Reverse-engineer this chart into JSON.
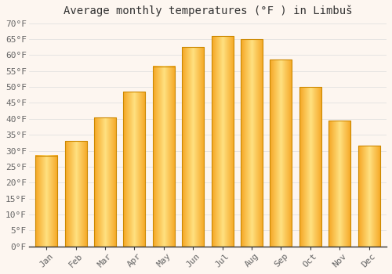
{
  "title": "Average monthly temperatures (°F ) in Limbuš",
  "months": [
    "Jan",
    "Feb",
    "Mar",
    "Apr",
    "May",
    "Jun",
    "Jul",
    "Aug",
    "Sep",
    "Oct",
    "Nov",
    "Dec"
  ],
  "values": [
    28.5,
    33.0,
    40.5,
    48.5,
    56.5,
    62.5,
    66.0,
    65.0,
    58.5,
    50.0,
    39.5,
    31.5
  ],
  "bar_color_center": "#FFD966",
  "bar_color_edge": "#F5A623",
  "ylim": [
    0,
    70
  ],
  "yticks": [
    0,
    5,
    10,
    15,
    20,
    25,
    30,
    35,
    40,
    45,
    50,
    55,
    60,
    65,
    70
  ],
  "ylabel_suffix": "°F",
  "grid_color": "#dddddd",
  "bg_color": "#fdf6f0",
  "plot_bg": "#fdf6f0",
  "title_fontsize": 10,
  "tick_fontsize": 8,
  "font_family": "monospace",
  "bar_width": 0.75
}
